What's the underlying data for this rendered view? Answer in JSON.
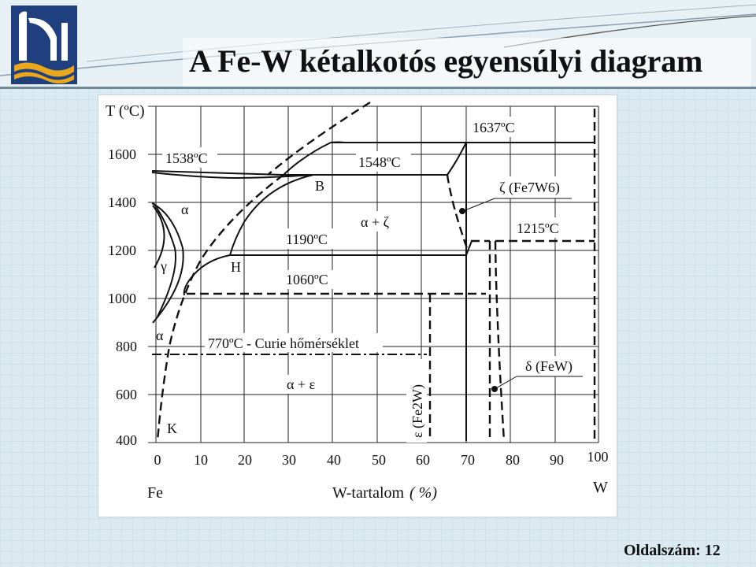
{
  "title": "A Fe-W kétalkotós egyensúlyi diagram",
  "footer": "Oldalszám: 12",
  "colors": {
    "background": "#dbe9f1",
    "logo_blue": "#1f3f7f",
    "logo_gold": "#e9a81c",
    "title_rule": "#6f8899"
  },
  "axes": {
    "ylabel": "T (ºC)",
    "xlabel": "W-tartalom",
    "xunit": "( %)",
    "left_element": "Fe",
    "right_element": "W",
    "x_ticks": [
      0,
      10,
      20,
      30,
      40,
      50,
      60,
      70,
      80,
      90,
      100
    ],
    "y_ticks": [
      400,
      600,
      800,
      1000,
      1200,
      1400,
      1600
    ],
    "xlim": [
      0,
      100
    ],
    "ylim": [
      400,
      1800
    ]
  },
  "phase_labels": {
    "alpha_top": "α",
    "gamma": "γ",
    "alpha_low": "α",
    "point_b": "B",
    "point_h": "H",
    "point_k": "K",
    "alpha_zeta": "α + ζ",
    "alpha_epsilon": "α + ε",
    "zeta_phase": "ζ (Fe7W6)",
    "delta_phase": "δ (FeW)",
    "epsilon_phase": "ε (Fe2W)"
  },
  "temperature_labels": {
    "t1637": "1637ºC",
    "t1538": "1538ºC",
    "t1548": "1548ºC",
    "t1190": "1190ºC",
    "t1215": "1215ºC",
    "t1060": "1060ºC",
    "curie": "770ºC - Curie hőmérséklet"
  }
}
